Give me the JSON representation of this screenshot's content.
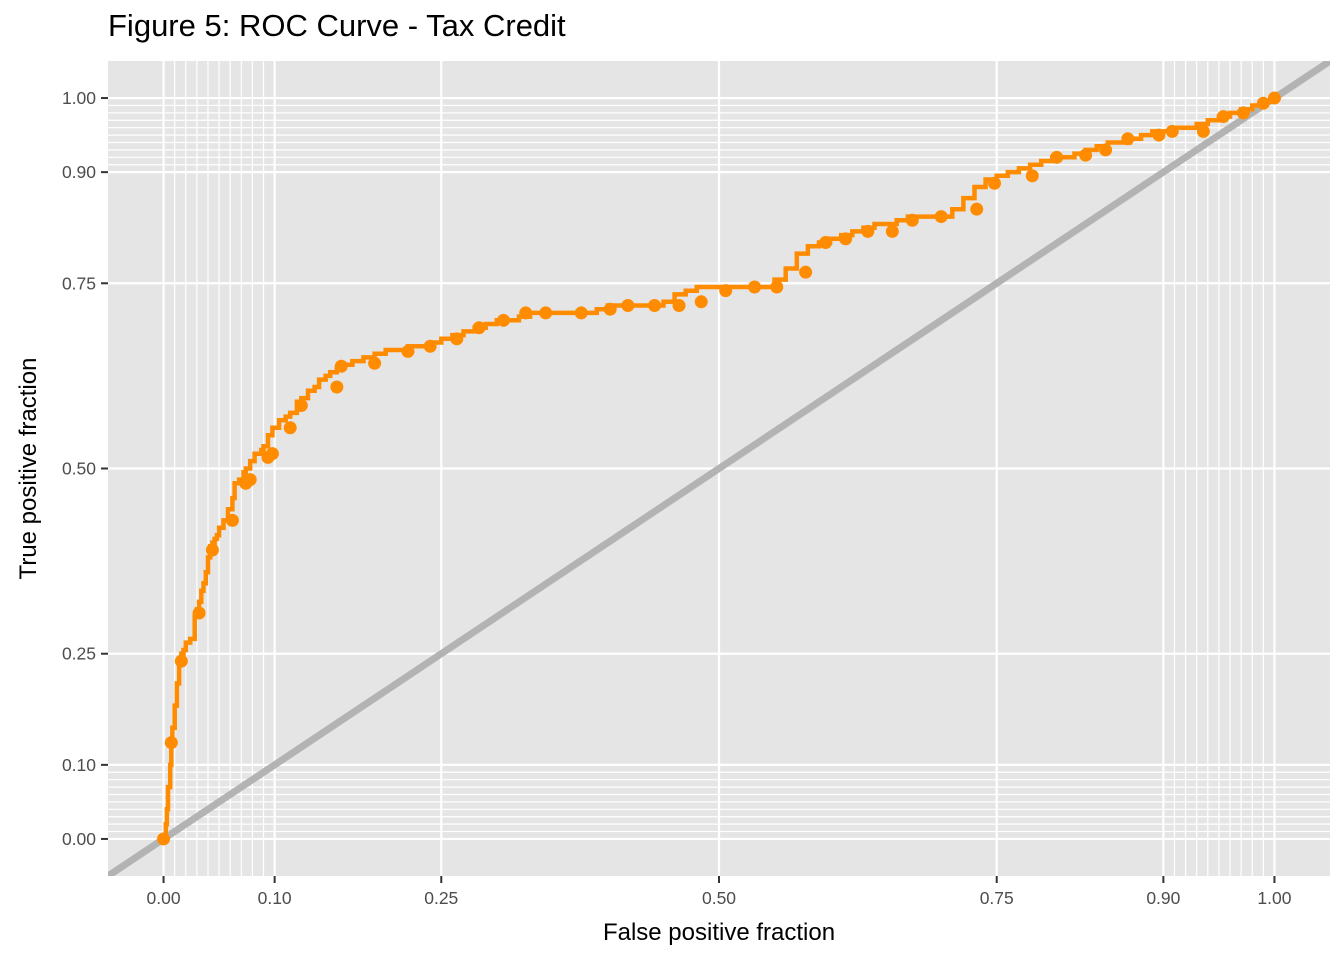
{
  "chart_data": {
    "type": "line",
    "title": "Figure 5: ROC Curve - Tax Credit",
    "xlabel": "False positive fraction",
    "ylabel": "True positive fraction",
    "xlim": [
      -0.05,
      1.05
    ],
    "ylim": [
      -0.05,
      1.05
    ],
    "x_ticks": [
      "0.00",
      "0.10",
      "0.25",
      "0.50",
      "0.75",
      "0.90",
      "1.00"
    ],
    "y_ticks": [
      "0.00",
      "0.10",
      "0.25",
      "0.50",
      "0.75",
      "0.90",
      "1.00"
    ],
    "grid": true,
    "x_minor_ticks": [
      0.01,
      0.02,
      0.03,
      0.04,
      0.05,
      0.06,
      0.07,
      0.08,
      0.09,
      0.91,
      0.92,
      0.93,
      0.94,
      0.95,
      0.96,
      0.97,
      0.98,
      0.99
    ],
    "y_minor_ticks": [
      0.01,
      0.02,
      0.03,
      0.04,
      0.05,
      0.06,
      0.07,
      0.08,
      0.09,
      0.91,
      0.92,
      0.93,
      0.94,
      0.95,
      0.96,
      0.97,
      0.98,
      0.99
    ],
    "colors": {
      "roc": "#ff8c00",
      "reference": "#b3b3b3",
      "panel": "#e5e5e5",
      "grid": "#ffffff"
    },
    "series": [
      {
        "kind": "roc-step",
        "x": [
          0.0,
          0.002,
          0.003,
          0.004,
          0.006,
          0.007,
          0.008,
          0.01,
          0.012,
          0.014,
          0.016,
          0.018,
          0.02,
          0.024,
          0.028,
          0.03,
          0.032,
          0.034,
          0.036,
          0.038,
          0.04,
          0.042,
          0.044,
          0.046,
          0.048,
          0.05,
          0.054,
          0.058,
          0.062,
          0.064,
          0.068,
          0.072,
          0.074,
          0.078,
          0.082,
          0.088,
          0.09,
          0.094,
          0.098,
          0.104,
          0.11,
          0.114,
          0.12,
          0.124,
          0.13,
          0.136,
          0.14,
          0.146,
          0.15,
          0.156,
          0.16,
          0.17,
          0.18,
          0.19,
          0.2,
          0.22,
          0.24,
          0.25,
          0.26,
          0.27,
          0.28,
          0.29,
          0.3,
          0.31,
          0.32,
          0.33,
          0.34,
          0.35,
          0.36,
          0.37,
          0.38,
          0.39,
          0.4,
          0.41,
          0.42,
          0.43,
          0.44,
          0.45,
          0.46,
          0.47,
          0.48,
          0.49,
          0.5,
          0.51,
          0.52,
          0.53,
          0.54,
          0.55,
          0.56,
          0.57,
          0.58,
          0.59,
          0.6,
          0.61,
          0.62,
          0.63,
          0.64,
          0.65,
          0.66,
          0.67,
          0.68,
          0.69,
          0.7,
          0.71,
          0.72,
          0.73,
          0.74,
          0.75,
          0.76,
          0.77,
          0.78,
          0.79,
          0.8,
          0.81,
          0.82,
          0.83,
          0.84,
          0.85,
          0.86,
          0.87,
          0.88,
          0.89,
          0.9,
          0.91,
          0.92,
          0.93,
          0.94,
          0.95,
          0.96,
          0.97,
          0.98,
          0.99,
          1.0
        ],
        "y": [
          0.0,
          0.02,
          0.04,
          0.07,
          0.1,
          0.13,
          0.15,
          0.18,
          0.21,
          0.24,
          0.25,
          0.255,
          0.265,
          0.27,
          0.3,
          0.31,
          0.32,
          0.335,
          0.345,
          0.36,
          0.38,
          0.395,
          0.4,
          0.405,
          0.41,
          0.42,
          0.43,
          0.445,
          0.46,
          0.48,
          0.485,
          0.495,
          0.5,
          0.51,
          0.52,
          0.525,
          0.53,
          0.545,
          0.555,
          0.565,
          0.57,
          0.575,
          0.59,
          0.595,
          0.605,
          0.61,
          0.62,
          0.625,
          0.63,
          0.635,
          0.64,
          0.645,
          0.65,
          0.655,
          0.66,
          0.665,
          0.67,
          0.675,
          0.68,
          0.685,
          0.69,
          0.695,
          0.7,
          0.7,
          0.705,
          0.71,
          0.71,
          0.71,
          0.71,
          0.71,
          0.71,
          0.715,
          0.72,
          0.72,
          0.72,
          0.72,
          0.72,
          0.725,
          0.735,
          0.74,
          0.745,
          0.745,
          0.745,
          0.745,
          0.745,
          0.745,
          0.745,
          0.755,
          0.77,
          0.79,
          0.8,
          0.805,
          0.81,
          0.815,
          0.82,
          0.825,
          0.83,
          0.83,
          0.835,
          0.84,
          0.84,
          0.84,
          0.84,
          0.85,
          0.865,
          0.88,
          0.89,
          0.895,
          0.9,
          0.905,
          0.91,
          0.915,
          0.92,
          0.92,
          0.925,
          0.93,
          0.935,
          0.94,
          0.94,
          0.945,
          0.95,
          0.955,
          0.955,
          0.96,
          0.96,
          0.965,
          0.97,
          0.975,
          0.98,
          0.985,
          0.99,
          0.995,
          1.0
        ]
      },
      {
        "kind": "roc-points",
        "x": [
          0.0,
          0.007,
          0.016,
          0.032,
          0.044,
          0.062,
          0.074,
          0.078,
          0.094,
          0.098,
          0.114,
          0.124,
          0.156,
          0.16,
          0.19,
          0.22,
          0.24,
          0.264,
          0.284,
          0.306,
          0.326,
          0.344,
          0.376,
          0.402,
          0.418,
          0.442,
          0.464,
          0.484,
          0.506,
          0.532,
          0.552,
          0.578,
          0.596,
          0.614,
          0.634,
          0.656,
          0.674,
          0.7,
          0.732,
          0.748,
          0.782,
          0.804,
          0.83,
          0.848,
          0.868,
          0.896,
          0.908,
          0.936,
          0.954,
          0.972,
          0.99,
          1.0
        ],
        "y": [
          0.0,
          0.13,
          0.24,
          0.305,
          0.39,
          0.43,
          0.48,
          0.485,
          0.515,
          0.52,
          0.555,
          0.585,
          0.61,
          0.638,
          0.642,
          0.658,
          0.665,
          0.675,
          0.69,
          0.7,
          0.71,
          0.71,
          0.71,
          0.715,
          0.72,
          0.72,
          0.72,
          0.725,
          0.74,
          0.745,
          0.745,
          0.765,
          0.805,
          0.81,
          0.82,
          0.82,
          0.835,
          0.84,
          0.85,
          0.885,
          0.895,
          0.92,
          0.923,
          0.93,
          0.945,
          0.95,
          0.955,
          0.955,
          0.975,
          0.98,
          0.993,
          1.0
        ]
      },
      {
        "kind": "reference",
        "x": [
          -0.05,
          1.05
        ],
        "y": [
          -0.05,
          1.05
        ]
      }
    ]
  }
}
